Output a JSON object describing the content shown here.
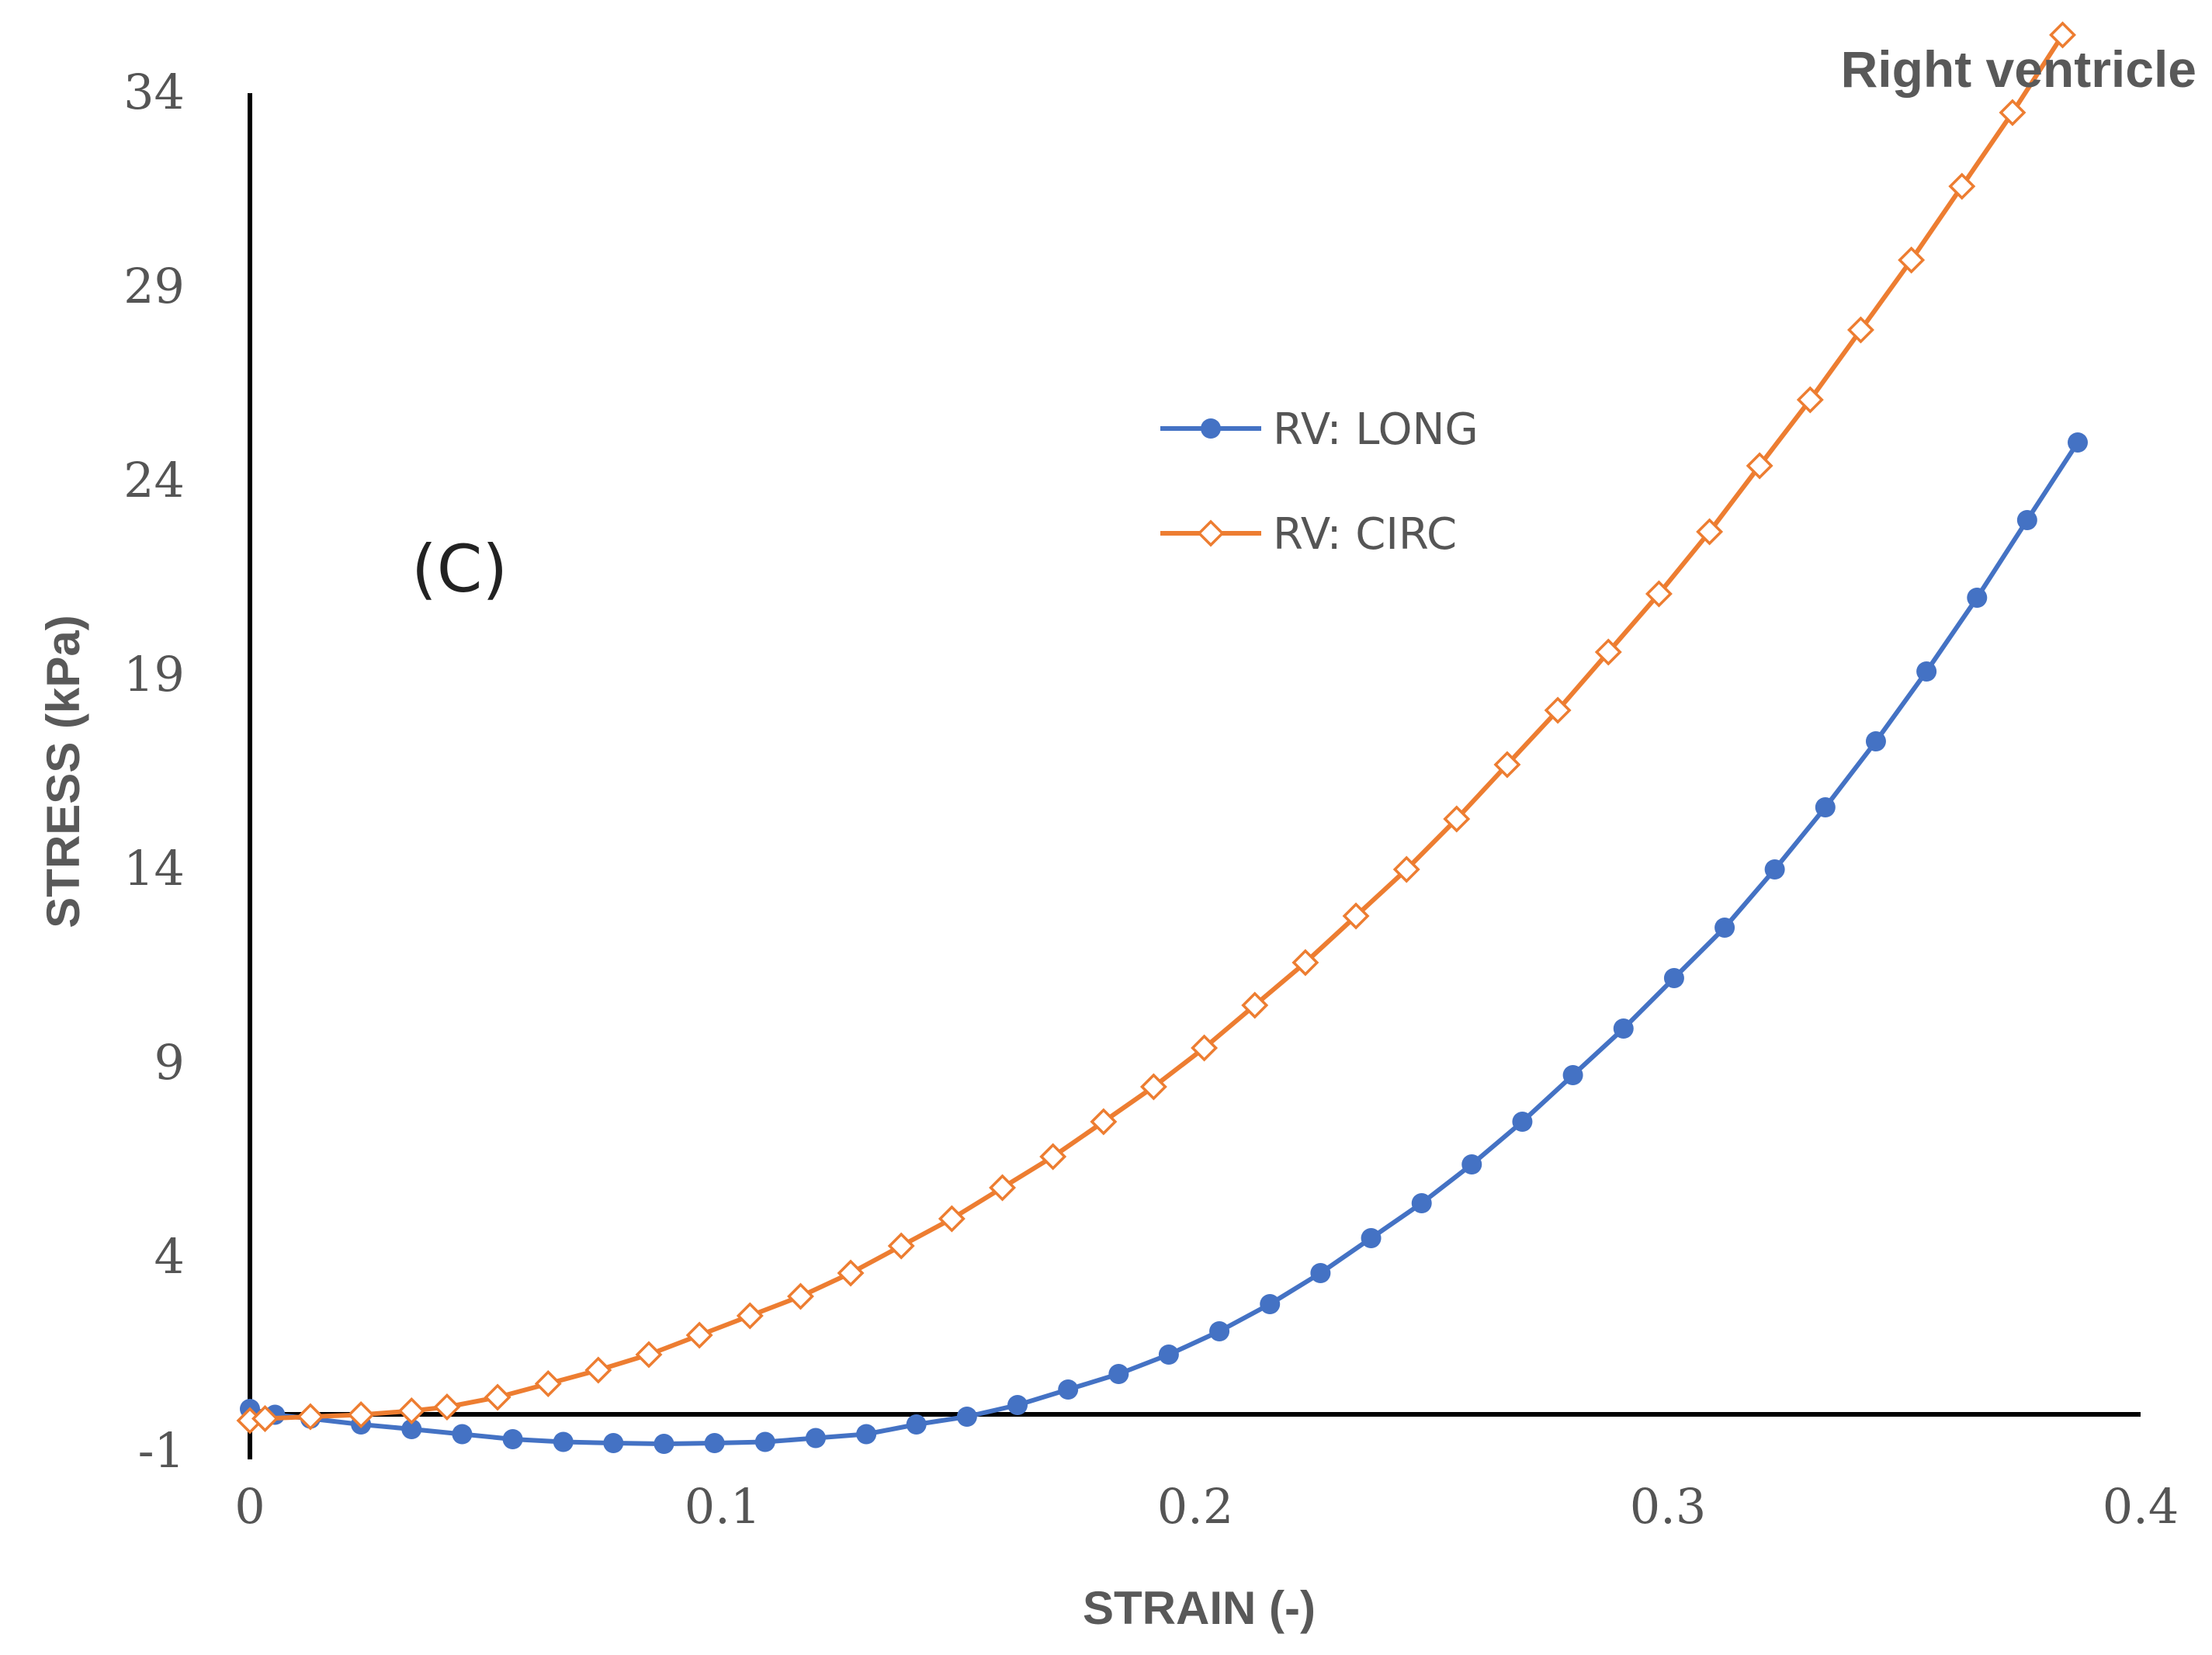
{
  "chart_data": {
    "type": "line",
    "title": "Right ventricle",
    "panel_label": "(C)",
    "xlabel": "STRAIN (-)",
    "ylabel": "STRESS (kPa)",
    "xlim": [
      0,
      0.4
    ],
    "ylim": [
      -1,
      34
    ],
    "x_ticks": [
      0,
      0.1,
      0.2,
      0.3,
      0.4
    ],
    "x_tick_labels": [
      "0",
      "0.1",
      "0.2",
      "0.3",
      "0.4"
    ],
    "y_ticks": [
      -1,
      4,
      9,
      14,
      19,
      24,
      29,
      34
    ],
    "y_tick_labels": [
      "-1",
      "4",
      "9",
      "14",
      "19",
      "24",
      "29",
      "34"
    ],
    "grid": false,
    "legend_position": "upper-center",
    "series": [
      {
        "name": "RV: LONG",
        "color": "#4472C4",
        "marker": "filled-circle",
        "x": [
          0,
          0.0053,
          0.0128,
          0.0235,
          0.0342,
          0.0449,
          0.0556,
          0.0663,
          0.0769,
          0.0876,
          0.0983,
          0.109,
          0.1197,
          0.1304,
          0.141,
          0.1517,
          0.1624,
          0.1731,
          0.1838,
          0.1944,
          0.2051,
          0.2158,
          0.2265,
          0.2372,
          0.2479,
          0.2585,
          0.2692,
          0.2799,
          0.2906,
          0.3013,
          0.312,
          0.3226,
          0.3333,
          0.344,
          0.3547,
          0.3654,
          0.376,
          0.3867
        ],
        "y": [
          0.1,
          -0.05,
          -0.15,
          -0.3,
          -0.42,
          -0.55,
          -0.68,
          -0.75,
          -0.78,
          -0.8,
          -0.78,
          -0.75,
          -0.65,
          -0.55,
          -0.3,
          -0.1,
          0.2,
          0.6,
          1.0,
          1.5,
          2.1,
          2.8,
          3.6,
          4.5,
          5.4,
          6.4,
          7.5,
          8.7,
          9.9,
          11.2,
          12.5,
          14.0,
          15.6,
          17.3,
          19.1,
          21.0,
          23.0,
          25.0
        ]
      },
      {
        "name": "RV: CIRC",
        "color": "#ED7D31",
        "marker": "hollow-diamond",
        "x": [
          0,
          0.0032,
          0.0128,
          0.0235,
          0.0342,
          0.0417,
          0.0524,
          0.0631,
          0.0737,
          0.0844,
          0.0951,
          0.1058,
          0.1165,
          0.1271,
          0.1378,
          0.1485,
          0.1592,
          0.1699,
          0.1806,
          0.1912,
          0.2019,
          0.2126,
          0.2233,
          0.234,
          0.2447,
          0.2553,
          0.266,
          0.2767,
          0.2874,
          0.2981,
          0.3088,
          0.3194,
          0.3301,
          0.3408,
          0.3515,
          0.3622,
          0.3729,
          0.3835
        ],
        "y": [
          -0.2,
          -0.15,
          -0.1,
          -0.05,
          0.05,
          0.15,
          0.4,
          0.75,
          1.1,
          1.5,
          2.0,
          2.5,
          3.0,
          3.6,
          4.3,
          5.0,
          5.8,
          6.6,
          7.5,
          8.4,
          9.4,
          10.5,
          11.6,
          12.8,
          14.0,
          15.3,
          16.7,
          18.1,
          19.6,
          21.1,
          22.7,
          24.4,
          26.1,
          27.9,
          29.7,
          31.6,
          33.5,
          35.5
        ]
      }
    ]
  }
}
